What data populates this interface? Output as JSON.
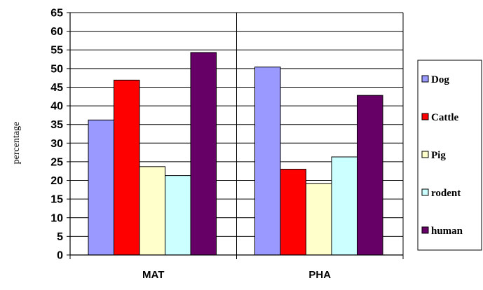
{
  "chart_data": {
    "type": "bar",
    "title": "",
    "xlabel": "",
    "ylabel": "percentage",
    "ylim": [
      0,
      65
    ],
    "yticks": [
      0,
      5,
      10,
      15,
      20,
      25,
      30,
      35,
      40,
      45,
      50,
      55,
      60,
      65
    ],
    "grid": "horizontal",
    "legend_position": "right",
    "categories": [
      "MAT",
      "PHA"
    ],
    "series": [
      {
        "name": "Dog",
        "color": "#9999ff",
        "values": [
          36.2,
          50.4
        ]
      },
      {
        "name": "Cattle",
        "color": "#ff0000",
        "values": [
          46.9,
          23.0
        ]
      },
      {
        "name": "Pig",
        "color": "#ffffcc",
        "values": [
          23.7,
          19.2
        ]
      },
      {
        "name": "rodent",
        "color": "#ccffff",
        "values": [
          21.3,
          26.3
        ]
      },
      {
        "name": "human",
        "color": "#660066",
        "values": [
          54.3,
          42.8
        ]
      }
    ]
  }
}
